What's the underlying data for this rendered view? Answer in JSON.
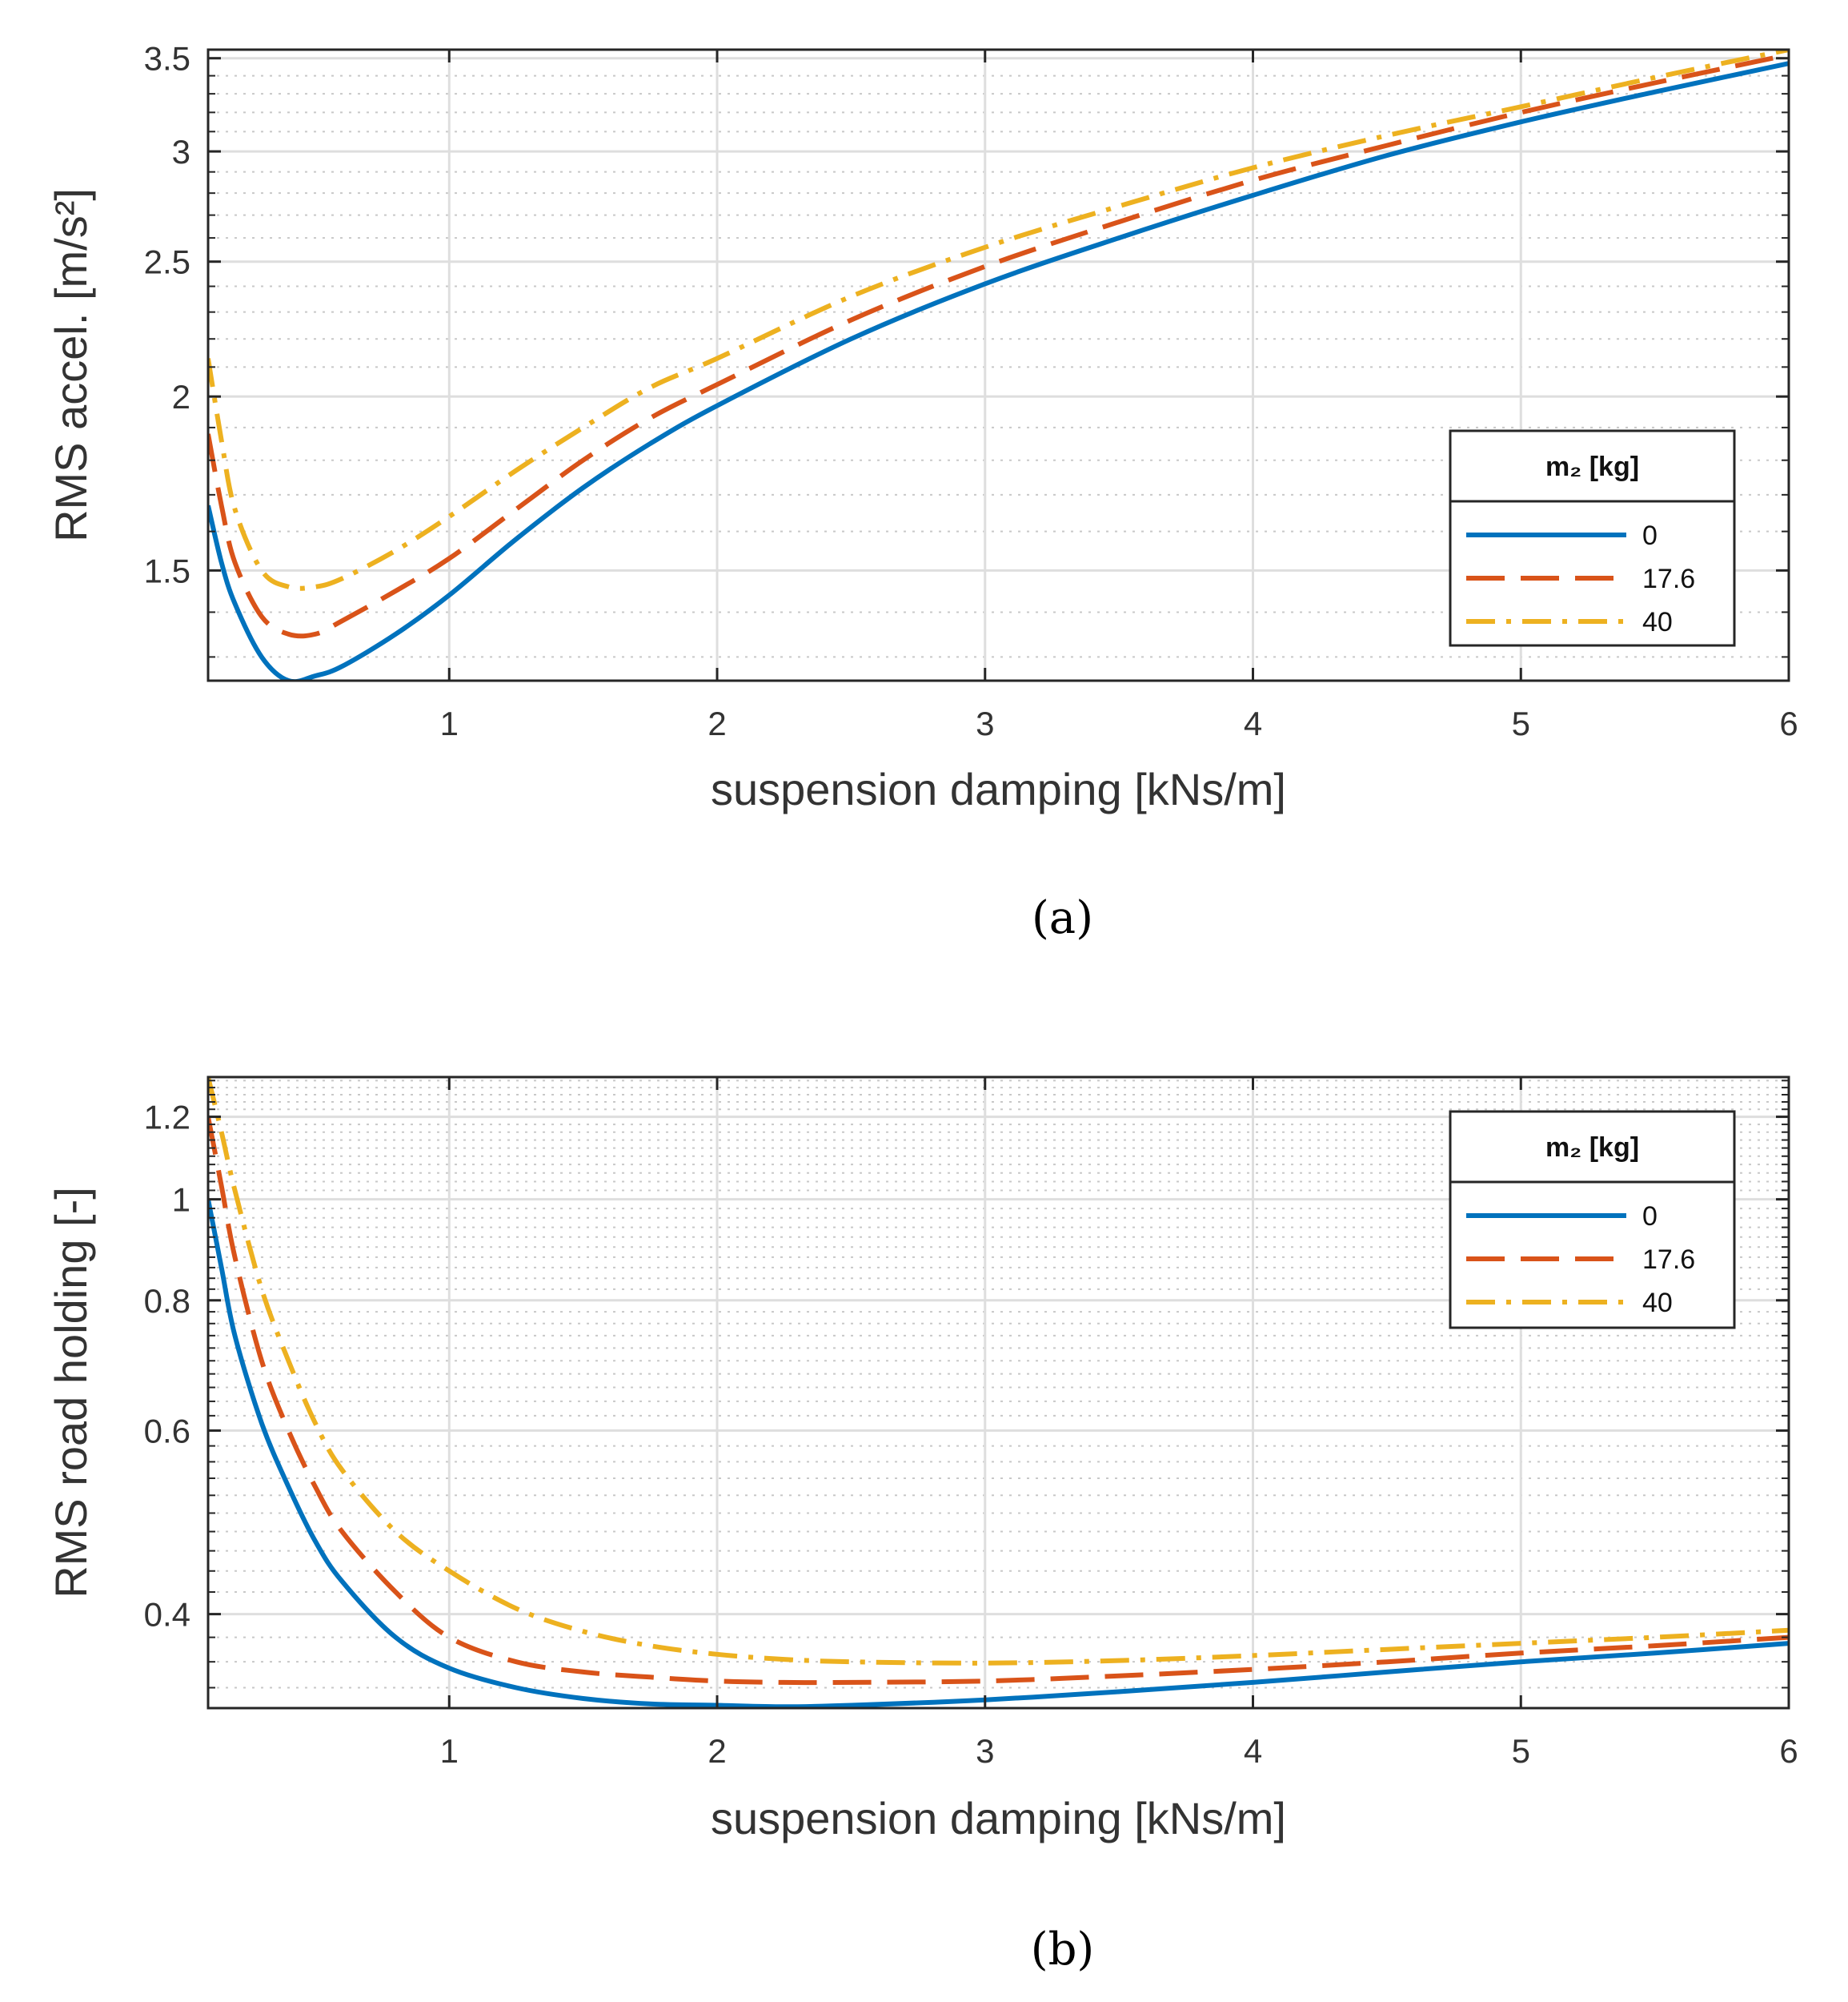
{
  "chart_data": [
    {
      "type": "line",
      "panel_label": "(a)",
      "xlabel": "suspension damping [kNs/m]",
      "ylabel": "RMS accel. [m/s²]",
      "xlim": [
        0.1,
        6
      ],
      "ylim": [
        1.25,
        3.55
      ],
      "yscale": "log",
      "x_ticks": [
        1,
        2,
        3,
        4,
        5,
        6
      ],
      "y_ticks": [
        1.5,
        2,
        2.5,
        3,
        3.5
      ],
      "y_tick_labels": [
        "1.5",
        "2",
        "2.5",
        "3",
        "3.5"
      ],
      "grid": true,
      "legend_placement": "right",
      "legend_title": "m₂ [kg]",
      "series": [
        {
          "name": "0",
          "color": "#0072BD",
          "style": "solid",
          "x": [
            0.1,
            0.15,
            0.2,
            0.3,
            0.4,
            0.5,
            0.6,
            0.8,
            1.0,
            1.25,
            1.5,
            1.75,
            2.0,
            2.5,
            3.0,
            3.5,
            4.0,
            4.5,
            5.0,
            5.5,
            6.0
          ],
          "y": [
            1.67,
            1.52,
            1.42,
            1.3,
            1.25,
            1.26,
            1.28,
            1.35,
            1.44,
            1.58,
            1.72,
            1.85,
            1.97,
            2.2,
            2.41,
            2.6,
            2.79,
            2.98,
            3.15,
            3.31,
            3.47
          ]
        },
        {
          "name": "17.6",
          "color": "#D95319",
          "style": "dash",
          "x": [
            0.1,
            0.15,
            0.2,
            0.3,
            0.4,
            0.5,
            0.6,
            0.8,
            1.0,
            1.25,
            1.5,
            1.75,
            2.0,
            2.5,
            3.0,
            3.5,
            4.0,
            4.5,
            5.0,
            5.5,
            6.0
          ],
          "y": [
            1.88,
            1.67,
            1.52,
            1.39,
            1.35,
            1.35,
            1.38,
            1.45,
            1.53,
            1.66,
            1.8,
            1.93,
            2.04,
            2.27,
            2.48,
            2.67,
            2.86,
            3.03,
            3.2,
            3.36,
            3.52
          ]
        },
        {
          "name": "40",
          "color": "#EDB120",
          "style": "dashdot",
          "x": [
            0.1,
            0.15,
            0.2,
            0.3,
            0.4,
            0.5,
            0.6,
            0.8,
            1.0,
            1.25,
            1.5,
            1.75,
            2.0,
            2.5,
            3.0,
            3.5,
            4.0,
            4.5,
            5.0,
            5.5,
            6.0
          ],
          "y": [
            2.13,
            1.86,
            1.66,
            1.5,
            1.46,
            1.46,
            1.48,
            1.55,
            1.64,
            1.77,
            1.9,
            2.03,
            2.13,
            2.36,
            2.56,
            2.74,
            2.92,
            3.08,
            3.23,
            3.39,
            3.55
          ]
        }
      ]
    },
    {
      "type": "line",
      "panel_label": "(b)",
      "xlabel": "suspension damping [kNs/m]",
      "ylabel": "RMS road holding [-]",
      "xlim": [
        0.1,
        6
      ],
      "ylim": [
        0.325,
        1.31
      ],
      "yscale": "log",
      "x_ticks": [
        1,
        2,
        3,
        4,
        5,
        6
      ],
      "y_ticks": [
        0.4,
        0.6,
        0.8,
        1,
        1.2
      ],
      "y_tick_labels": [
        "0.4",
        "0.6",
        "0.8",
        "1",
        "1.2"
      ],
      "grid": true,
      "legend_placement": "top-right",
      "legend_title": "m₂ [kg]",
      "series": [
        {
          "name": "0",
          "color": "#0072BD",
          "style": "solid",
          "x": [
            0.1,
            0.15,
            0.2,
            0.3,
            0.4,
            0.5,
            0.6,
            0.8,
            1.0,
            1.25,
            1.5,
            1.75,
            2.0,
            2.25,
            2.5,
            3.0,
            3.5,
            4.0,
            4.5,
            5.0,
            5.5,
            6.0
          ],
          "y": [
            1.0,
            0.86,
            0.74,
            0.61,
            0.53,
            0.47,
            0.43,
            0.38,
            0.355,
            0.34,
            0.332,
            0.328,
            0.327,
            0.326,
            0.327,
            0.331,
            0.337,
            0.344,
            0.352,
            0.36,
            0.367,
            0.375
          ]
        },
        {
          "name": "17.6",
          "color": "#D95319",
          "style": "dash",
          "x": [
            0.1,
            0.15,
            0.2,
            0.3,
            0.4,
            0.5,
            0.6,
            0.8,
            1.0,
            1.25,
            1.5,
            1.75,
            2.0,
            2.25,
            2.5,
            3.0,
            3.5,
            4.0,
            4.5,
            5.0,
            5.5,
            6.0
          ],
          "y": [
            1.2,
            1.03,
            0.88,
            0.7,
            0.6,
            0.53,
            0.48,
            0.42,
            0.38,
            0.36,
            0.352,
            0.348,
            0.345,
            0.344,
            0.344,
            0.345,
            0.349,
            0.354,
            0.36,
            0.367,
            0.373,
            0.38
          ]
        },
        {
          "name": "40",
          "color": "#EDB120",
          "style": "dashdot",
          "x": [
            0.1,
            0.15,
            0.2,
            0.3,
            0.4,
            0.5,
            0.6,
            0.8,
            1.0,
            1.25,
            1.5,
            1.75,
            2.0,
            2.25,
            2.5,
            3.0,
            3.5,
            4.0,
            4.5,
            5.0,
            5.5,
            6.0
          ],
          "y": [
            1.31,
            1.16,
            1.02,
            0.82,
            0.7,
            0.61,
            0.55,
            0.48,
            0.44,
            0.405,
            0.385,
            0.373,
            0.366,
            0.362,
            0.36,
            0.359,
            0.361,
            0.365,
            0.37,
            0.375,
            0.38,
            0.386
          ]
        }
      ]
    }
  ]
}
